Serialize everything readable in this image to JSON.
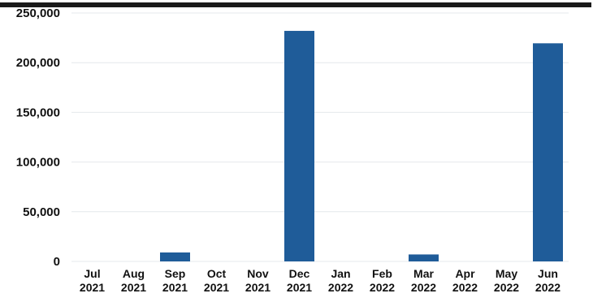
{
  "chart_data": {
    "type": "bar",
    "categories": [
      [
        "Jul",
        "2021"
      ],
      [
        "Aug",
        "2021"
      ],
      [
        "Sep",
        "2021"
      ],
      [
        "Oct",
        "2021"
      ],
      [
        "Nov",
        "2021"
      ],
      [
        "Dec",
        "2021"
      ],
      [
        "Jan",
        "2022"
      ],
      [
        "Feb",
        "2022"
      ],
      [
        "Mar",
        "2022"
      ],
      [
        "Apr",
        "2022"
      ],
      [
        "May",
        "2022"
      ],
      [
        "Jun",
        "2022"
      ]
    ],
    "values": [
      0,
      0,
      9000,
      0,
      0,
      232000,
      0,
      0,
      7000,
      0,
      0,
      219500
    ],
    "ylim": [
      0,
      250000
    ],
    "yticks": [
      0,
      50000,
      100000,
      150000,
      200000,
      250000
    ],
    "ytick_labels": [
      "0",
      "50,000",
      "100,000",
      "150,000",
      "200,000",
      "250,000"
    ],
    "title": "",
    "xlabel": "",
    "ylabel": "",
    "grid": true,
    "bar_color": "#1f5c99",
    "grid_color": "#e4e8ec",
    "top_rule_color": "#1a1a1a"
  }
}
